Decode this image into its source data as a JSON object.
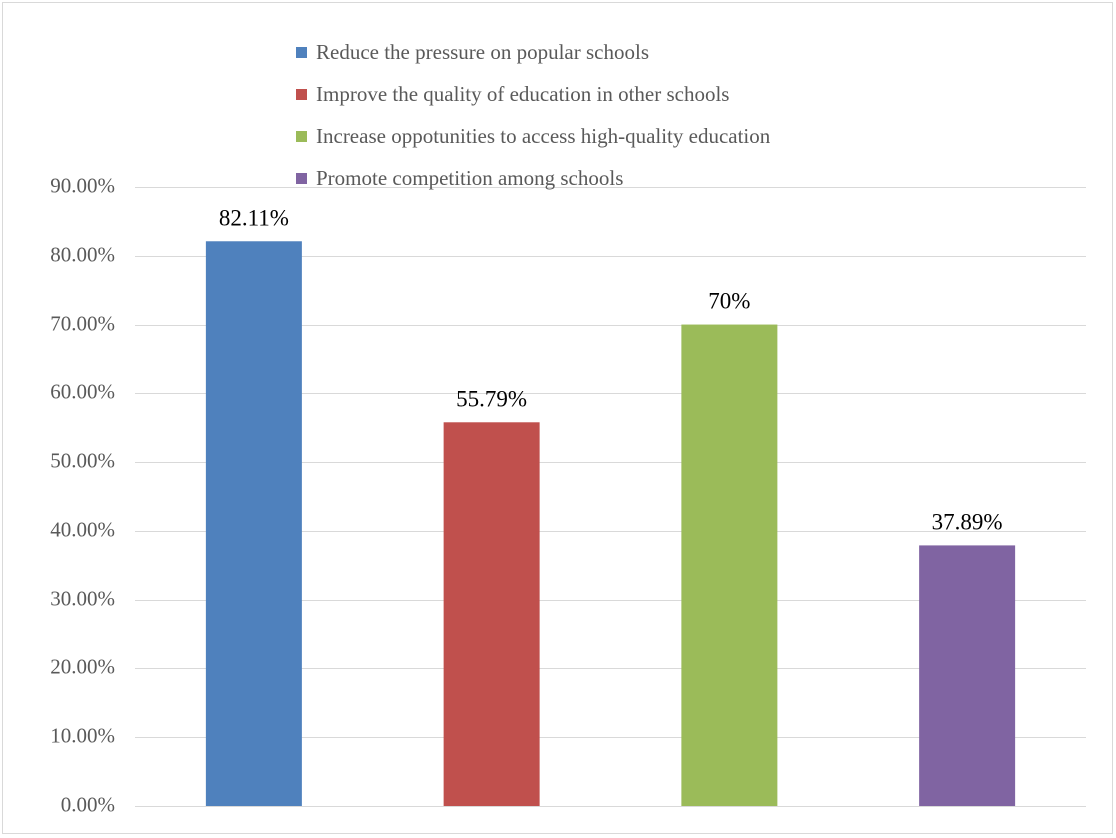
{
  "chart_data": {
    "type": "bar",
    "categories": [
      "Reduce the pressure on popular schools",
      "Improve the quality of education in other schools",
      "Increase oppotunities to access high-quality education",
      "Promote competition among schools"
    ],
    "values": [
      82.11,
      55.79,
      70,
      37.89
    ],
    "data_labels": [
      "82.11%",
      "55.79%",
      "70%",
      "37.89%"
    ],
    "colors": [
      "#4f81bd",
      "#c0504d",
      "#9bbb59",
      "#8064a2"
    ],
    "ylim": [
      0,
      90
    ],
    "yticks": [
      0,
      10,
      20,
      30,
      40,
      50,
      60,
      70,
      80,
      90
    ],
    "ytick_labels": [
      "0.00%",
      "10.00%",
      "20.00%",
      "30.00%",
      "40.00%",
      "50.00%",
      "60.00%",
      "70.00%",
      "80.00%",
      "90.00%"
    ],
    "grid": true,
    "legend_position": "top",
    "title": "",
    "xlabel": "",
    "ylabel": ""
  }
}
